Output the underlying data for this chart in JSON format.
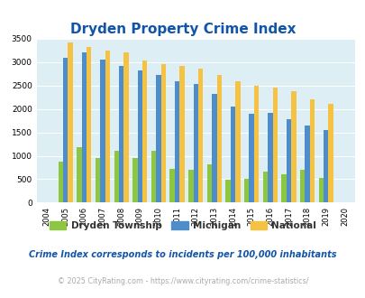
{
  "title": "Dryden Property Crime Index",
  "years": [
    2004,
    2005,
    2006,
    2007,
    2008,
    2009,
    2010,
    2011,
    2012,
    2013,
    2014,
    2015,
    2016,
    2017,
    2018,
    2019,
    2020
  ],
  "dryden": [
    0,
    880,
    1180,
    960,
    1100,
    960,
    1100,
    730,
    700,
    820,
    490,
    510,
    670,
    600,
    700,
    520,
    0
  ],
  "michigan": [
    0,
    3100,
    3200,
    3050,
    2920,
    2820,
    2720,
    2600,
    2540,
    2330,
    2050,
    1900,
    1920,
    1790,
    1640,
    1560,
    0
  ],
  "national": [
    0,
    3420,
    3330,
    3250,
    3200,
    3040,
    2960,
    2910,
    2860,
    2720,
    2590,
    2490,
    2460,
    2380,
    2210,
    2110,
    0
  ],
  "dryden_color": "#8dc641",
  "michigan_color": "#4d8dcb",
  "national_color": "#f5c242",
  "bg_color": "#ddeef5",
  "ylim": [
    0,
    3500
  ],
  "yticks": [
    0,
    500,
    1000,
    1500,
    2000,
    2500,
    3000,
    3500
  ],
  "legend_labels": [
    "Dryden Township",
    "Michigan",
    "National"
  ],
  "footnote1": "Crime Index corresponds to incidents per 100,000 inhabitants",
  "footnote2": "© 2025 CityRating.com - https://www.cityrating.com/crime-statistics/",
  "title_color": "#1155aa",
  "footnote1_color": "#1155aa",
  "footnote2_color": "#aaaaaa"
}
